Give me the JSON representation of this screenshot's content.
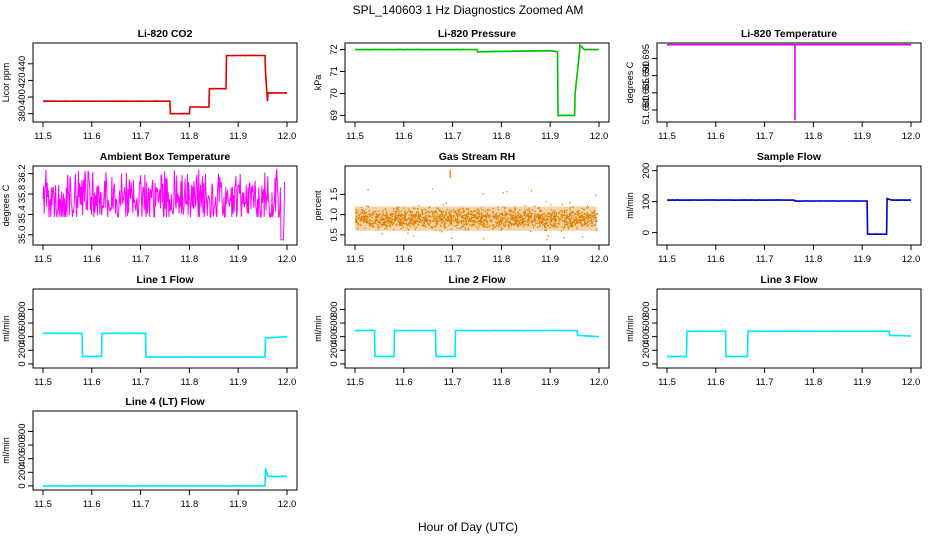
{
  "figure": {
    "title": "SPL_140603  1 Hz Diagnostics Zoomed AM",
    "xlabel": "Hour of Day (UTC)"
  },
  "chart_data": [
    {
      "type": "line",
      "title": "Li-820 CO2",
      "ylabel": "Licor ppm",
      "color": "#e00000",
      "xlim": [
        11.5,
        12.0
      ],
      "ylim": [
        370,
        465
      ],
      "yticks": [
        380,
        400,
        420,
        440
      ],
      "xticks": [
        11.5,
        11.6,
        11.7,
        11.8,
        11.9,
        12.0
      ],
      "x": [
        11.5,
        11.76,
        11.761,
        11.8,
        11.801,
        11.84,
        11.841,
        11.875,
        11.876,
        11.955,
        11.956,
        11.96,
        11.961,
        12.0
      ],
      "y": [
        395,
        395,
        380,
        380,
        388,
        388,
        410,
        410,
        450,
        450,
        430,
        395,
        405,
        405
      ]
    },
    {
      "type": "line",
      "title": "Li-820 Pressure",
      "ylabel": "kPa",
      "color": "#00c000",
      "xlim": [
        11.5,
        12.0
      ],
      "ylim": [
        68.7,
        72.3
      ],
      "yticks": [
        69,
        70,
        71,
        72
      ],
      "xticks": [
        11.5,
        11.6,
        11.7,
        11.8,
        11.9,
        12.0
      ],
      "x": [
        11.5,
        11.75,
        11.751,
        11.9,
        11.915,
        11.916,
        11.95,
        11.951,
        11.96,
        11.961,
        11.97,
        12.0
      ],
      "y": [
        72.0,
        72.0,
        71.9,
        71.95,
        71.9,
        69.0,
        69.0,
        70.0,
        71.9,
        72.2,
        72.0,
        72.0
      ]
    },
    {
      "type": "line",
      "title": "Li-820 Temperature",
      "ylabel": "degrees C",
      "color": "#e000e0",
      "xlim": [
        11.5,
        12.0
      ],
      "ylim": [
        51.6765,
        51.6995
      ],
      "yticks": [
        51.68,
        51.685,
        51.69,
        51.695
      ],
      "xticks": [
        11.5,
        11.6,
        11.7,
        11.8,
        11.9,
        12.0
      ],
      "x": [
        11.5,
        11.762,
        11.762,
        11.762,
        12.0
      ],
      "y": [
        51.699,
        51.699,
        51.677,
        51.699,
        51.699
      ]
    },
    {
      "type": "line",
      "title": "Ambient Box Temperature",
      "ylabel": "degrees C",
      "color": "#ff00ff",
      "xlim": [
        11.5,
        12.0
      ],
      "ylim": [
        34.8,
        36.35
      ],
      "yticks": [
        35.0,
        35.4,
        35.8,
        36.2
      ],
      "xticks": [
        11.5,
        11.6,
        11.7,
        11.8,
        11.9,
        12.0
      ],
      "noise": {
        "from": 11.5,
        "to": 11.995,
        "low": 35.35,
        "high": 36.3,
        "mean": 35.7,
        "dip_at": 11.99,
        "dip_value": 34.9
      }
    },
    {
      "type": "scatter",
      "title": "Gas Stream RH",
      "ylabel": "percent",
      "color": "#e08000",
      "xlim": [
        11.5,
        12.0
      ],
      "ylim": [
        0.25,
        2.2
      ],
      "yticks": [
        0.5,
        1.0,
        1.5
      ],
      "xticks": [
        11.5,
        11.6,
        11.7,
        11.8,
        11.9,
        12.0
      ],
      "noise": {
        "from": 11.5,
        "to": 11.995,
        "low": 0.55,
        "high": 1.25,
        "mean": 0.9,
        "spike_x": 11.695,
        "spike_value": 2.1
      }
    },
    {
      "type": "line",
      "title": "Sample Flow",
      "ylabel": "ml/min",
      "color": "#0000d0",
      "xlim": [
        11.5,
        12.0
      ],
      "ylim": [
        -40,
        215
      ],
      "yticks": [
        0,
        100,
        200
      ],
      "xticks": [
        11.5,
        11.6,
        11.7,
        11.8,
        11.9,
        12.0
      ],
      "x": [
        11.5,
        11.76,
        11.761,
        11.91,
        11.911,
        11.95,
        11.951,
        11.96,
        12.0
      ],
      "y": [
        105,
        105,
        102,
        102,
        -5,
        -5,
        110,
        105,
        105
      ]
    },
    {
      "type": "line",
      "title": "Line 1 Flow",
      "ylabel": "ml/min",
      "color": "#00e8ff",
      "xlim": [
        11.5,
        12.0
      ],
      "ylim": [
        -60,
        1100
      ],
      "yticks": [
        0,
        200,
        400,
        600,
        800
      ],
      "xticks": [
        11.5,
        11.6,
        11.7,
        11.8,
        11.9,
        12.0
      ],
      "x": [
        11.5,
        11.58,
        11.581,
        11.62,
        11.621,
        11.71,
        11.711,
        11.955,
        11.956,
        12.0
      ],
      "y": [
        450,
        450,
        110,
        110,
        450,
        450,
        100,
        100,
        380,
        400
      ]
    },
    {
      "type": "line",
      "title": "Line 2 Flow",
      "ylabel": "ml/min",
      "color": "#00e8ff",
      "xlim": [
        11.5,
        12.0
      ],
      "ylim": [
        -60,
        1100
      ],
      "yticks": [
        0,
        200,
        400,
        600,
        800
      ],
      "xticks": [
        11.5,
        11.6,
        11.7,
        11.8,
        11.9,
        12.0
      ],
      "x": [
        11.5,
        11.54,
        11.541,
        11.58,
        11.581,
        11.665,
        11.666,
        11.705,
        11.706,
        11.955,
        11.956,
        12.0
      ],
      "y": [
        490,
        490,
        110,
        110,
        490,
        490,
        110,
        110,
        490,
        490,
        420,
        400
      ]
    },
    {
      "type": "line",
      "title": "Line 3 Flow",
      "ylabel": "ml/min",
      "color": "#00e8ff",
      "xlim": [
        11.5,
        12.0
      ],
      "ylim": [
        -60,
        1100
      ],
      "yticks": [
        0,
        200,
        400,
        600,
        800
      ],
      "xticks": [
        11.5,
        11.6,
        11.7,
        11.8,
        11.9,
        12.0
      ],
      "x": [
        11.5,
        11.54,
        11.541,
        11.62,
        11.621,
        11.665,
        11.666,
        11.955,
        11.956,
        12.0
      ],
      "y": [
        110,
        110,
        480,
        480,
        110,
        110,
        480,
        480,
        420,
        410
      ]
    },
    {
      "type": "line",
      "title": "Line 4 (LT) Flow",
      "ylabel": "ml/min",
      "color": "#00e8ff",
      "xlim": [
        11.5,
        12.0
      ],
      "ylim": [
        -60,
        1100
      ],
      "yticks": [
        0,
        200,
        400,
        600,
        800
      ],
      "xticks": [
        11.5,
        11.6,
        11.7,
        11.8,
        11.9,
        12.0
      ],
      "x": [
        11.5,
        11.955,
        11.956,
        11.96,
        11.965,
        12.0
      ],
      "y": [
        0,
        0,
        260,
        150,
        140,
        140
      ]
    }
  ]
}
